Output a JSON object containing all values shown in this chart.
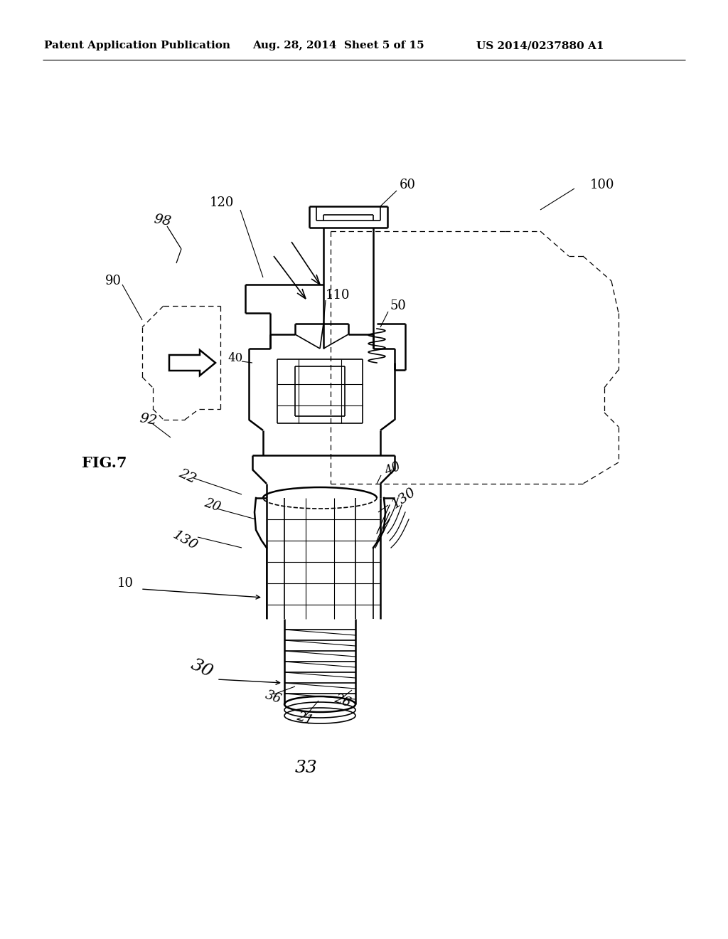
{
  "header_left": "Patent Application Publication",
  "header_center": "Aug. 28, 2014  Sheet 5 of 15",
  "header_right": "US 2014/0237880 A1",
  "fig_label": "FIG.7",
  "background_color": "#ffffff",
  "line_color": "#000000",
  "text_color": "#000000",
  "header_fontsize": 11,
  "fig_label_fontsize": 15,
  "annotation_fontsize": 13
}
